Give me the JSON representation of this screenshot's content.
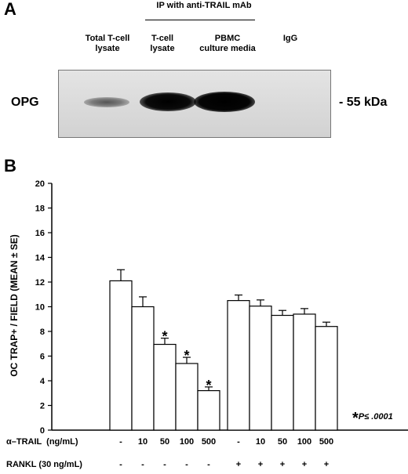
{
  "panel_a": {
    "letter": "A",
    "ip_header": "IP with anti-TRAIL mAb",
    "lanes": [
      {
        "line1": "Total  T-cell",
        "line2": "lysate"
      },
      {
        "line1": "T-cell",
        "line2": "lysate"
      },
      {
        "line1": "PBMC",
        "line2": "culture media"
      },
      {
        "line1": "IgG",
        "line2": ""
      }
    ],
    "row_label": "OPG",
    "marker": "- 55 kDa"
  },
  "panel_b": {
    "letter": "B",
    "significance_star": "*",
    "significance_text": "P≤ .0001",
    "row1_label": "α–TRAIL  (ng/mL)",
    "row2_label": "RANKL (30 ng/mL)",
    "row1_values": [
      "-",
      "10",
      "50",
      "100",
      "500",
      "-",
      "10",
      "50",
      "100",
      "500"
    ],
    "row2_values": [
      "-",
      "-",
      "-",
      "-",
      "-",
      "+",
      "+",
      "+",
      "+",
      "+"
    ]
  },
  "chart_data": {
    "type": "bar",
    "ylabel": "OC TRAP+ / FIELD (MEAN ± SE)",
    "ylim": [
      0,
      20
    ],
    "yticks": [
      0,
      2,
      4,
      6,
      8,
      10,
      12,
      14,
      16,
      18,
      20
    ],
    "groups": [
      {
        "rankl": "-",
        "trail": [
          "-",
          "10",
          "50",
          "100",
          "500"
        ],
        "values": [
          12.1,
          10.0,
          6.95,
          5.4,
          3.2
        ],
        "errors": [
          0.9,
          0.8,
          0.5,
          0.5,
          0.3
        ],
        "significant": [
          false,
          false,
          true,
          true,
          true
        ]
      },
      {
        "rankl": "+",
        "trail": [
          "-",
          "10",
          "50",
          "100",
          "500"
        ],
        "values": [
          10.5,
          10.05,
          9.3,
          9.4,
          8.4
        ],
        "errors": [
          0.45,
          0.5,
          0.4,
          0.45,
          0.35
        ],
        "significant": [
          false,
          false,
          false,
          false,
          false
        ]
      }
    ]
  }
}
